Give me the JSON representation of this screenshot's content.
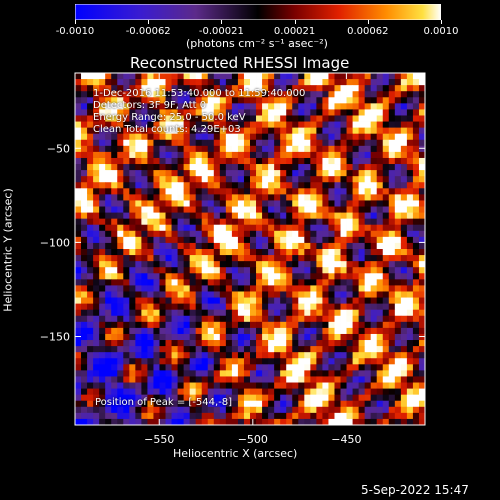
{
  "colorbar": {
    "ticks": [
      "-0.0010",
      "-0.00062",
      "-0.00021",
      "0.00021",
      "0.00062",
      "0.0010"
    ],
    "unit_label": "(photons cm⁻² s⁻¹ asec⁻²)",
    "min": -0.001,
    "max": 0.001
  },
  "chart_data": {
    "type": "heatmap",
    "title": "Reconstructed RHESSI Image",
    "xlabel": "Heliocentric X (arcsec)",
    "ylabel": "Heliocentric Y (arcsec)",
    "x_ticks": [
      -550,
      -500,
      -450
    ],
    "y_ticks": [
      -50,
      -100,
      -150
    ],
    "xlim": [
      -595,
      -408
    ],
    "ylim": [
      -197,
      -10
    ],
    "value_range": [
      -0.001,
      0.001
    ],
    "peak": [
      -544,
      -8
    ]
  },
  "annotations": {
    "time_range": "1-Dec-2016 11:53:40.000 to 11:59:40.000",
    "detectors": "Detectors: 3F 9F, Att 0",
    "energy": "Energy Range: 25.0 - 50.0 keV",
    "clean": "Clean     Total counts: 4.29E+03",
    "peak": "Position of Peak = [-544,-8]"
  },
  "footer": {
    "timestamp": "5-Sep-2022 15:47"
  }
}
